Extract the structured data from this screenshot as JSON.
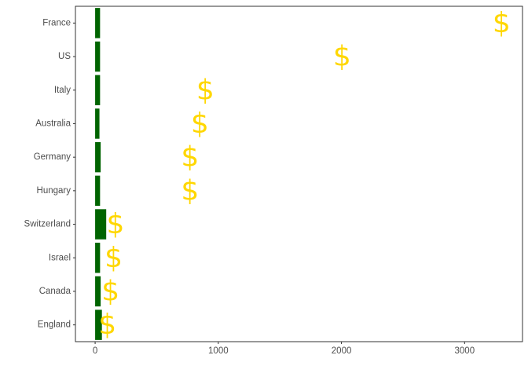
{
  "chart_data": {
    "type": "bar",
    "orientation": "horizontal",
    "categories": [
      "France",
      "US",
      "Italy",
      "Australia",
      "Germany",
      "Hungary",
      "Switzerland",
      "Israel",
      "Canada",
      "England"
    ],
    "series": [
      {
        "values": [
          40,
          40,
          40,
          35,
          45,
          40,
          90,
          40,
          45,
          55
        ],
        "color": "#006400"
      }
    ],
    "markers": {
      "symbol": "$",
      "color": "#FFD700",
      "x": [
        3300,
        2005,
        895,
        850,
        770,
        770,
        165,
        150,
        125,
        100
      ]
    },
    "xlim": [
      -160,
      3470
    ],
    "xticks": [
      0,
      1000,
      2000,
      3000
    ],
    "xtick_labels": [
      "0",
      "1000",
      "2000",
      "3000"
    ],
    "title": "",
    "xlabel": "",
    "ylabel": "",
    "grid": false,
    "legend": "none"
  }
}
